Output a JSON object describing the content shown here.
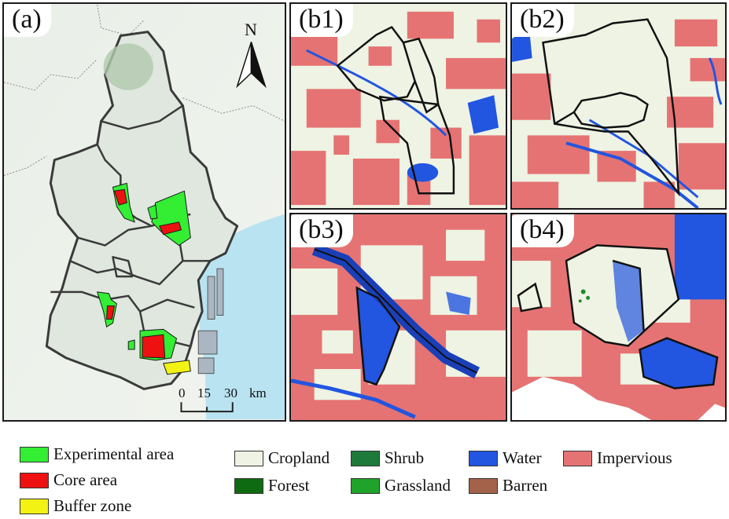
{
  "panels": {
    "a": "(a)",
    "b1": "(b1)",
    "b2": "(b2)",
    "b3": "(b3)",
    "b4": "(b4)"
  },
  "north": "N",
  "scale": {
    "t0": "0",
    "t1": "15",
    "t2": "30",
    "unit": "km"
  },
  "legend_zones": [
    {
      "label": "Experimental area",
      "color": "#33ee33"
    },
    {
      "label": "Core area",
      "color": "#ee1111"
    },
    {
      "label": "Buffer zone",
      "color": "#f2f213"
    }
  ],
  "legend_landcover": [
    {
      "label": "Cropland",
      "color": "#eef3e3"
    },
    {
      "label": "Shrub",
      "color": "#1e7a3a"
    },
    {
      "label": "Water",
      "color": "#2255e0"
    },
    {
      "label": "Impervious",
      "color": "#e57373"
    },
    {
      "label": "Forest",
      "color": "#0f6b12"
    },
    {
      "label": "Grassland",
      "color": "#1fa32a"
    },
    {
      "label": "Barren",
      "color": "#a5624a"
    }
  ]
}
